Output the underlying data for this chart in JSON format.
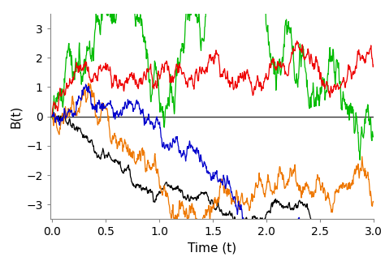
{
  "xlabel": "Time (t)",
  "ylabel": "B(t)",
  "xlim": [
    -0.02,
    3.0
  ],
  "ylim": [
    -3.5,
    3.5
  ],
  "xticks": [
    0.0,
    0.5,
    1.0,
    1.5,
    2.0,
    2.5,
    3.0
  ],
  "yticks": [
    -3,
    -2,
    -1,
    0,
    1,
    2,
    3
  ],
  "n_steps": 900,
  "T": 3.0,
  "colors": [
    "#00BB00",
    "#000000",
    "#EE0000",
    "#EE7700",
    "#0000CC"
  ],
  "linewidth": 0.9,
  "background_color": "#ffffff",
  "hline_y": 0,
  "hline_color": "#333333",
  "hline_lw": 1.0,
  "xlabel_fontsize": 11,
  "ylabel_fontsize": 11,
  "tick_fontsize": 10
}
